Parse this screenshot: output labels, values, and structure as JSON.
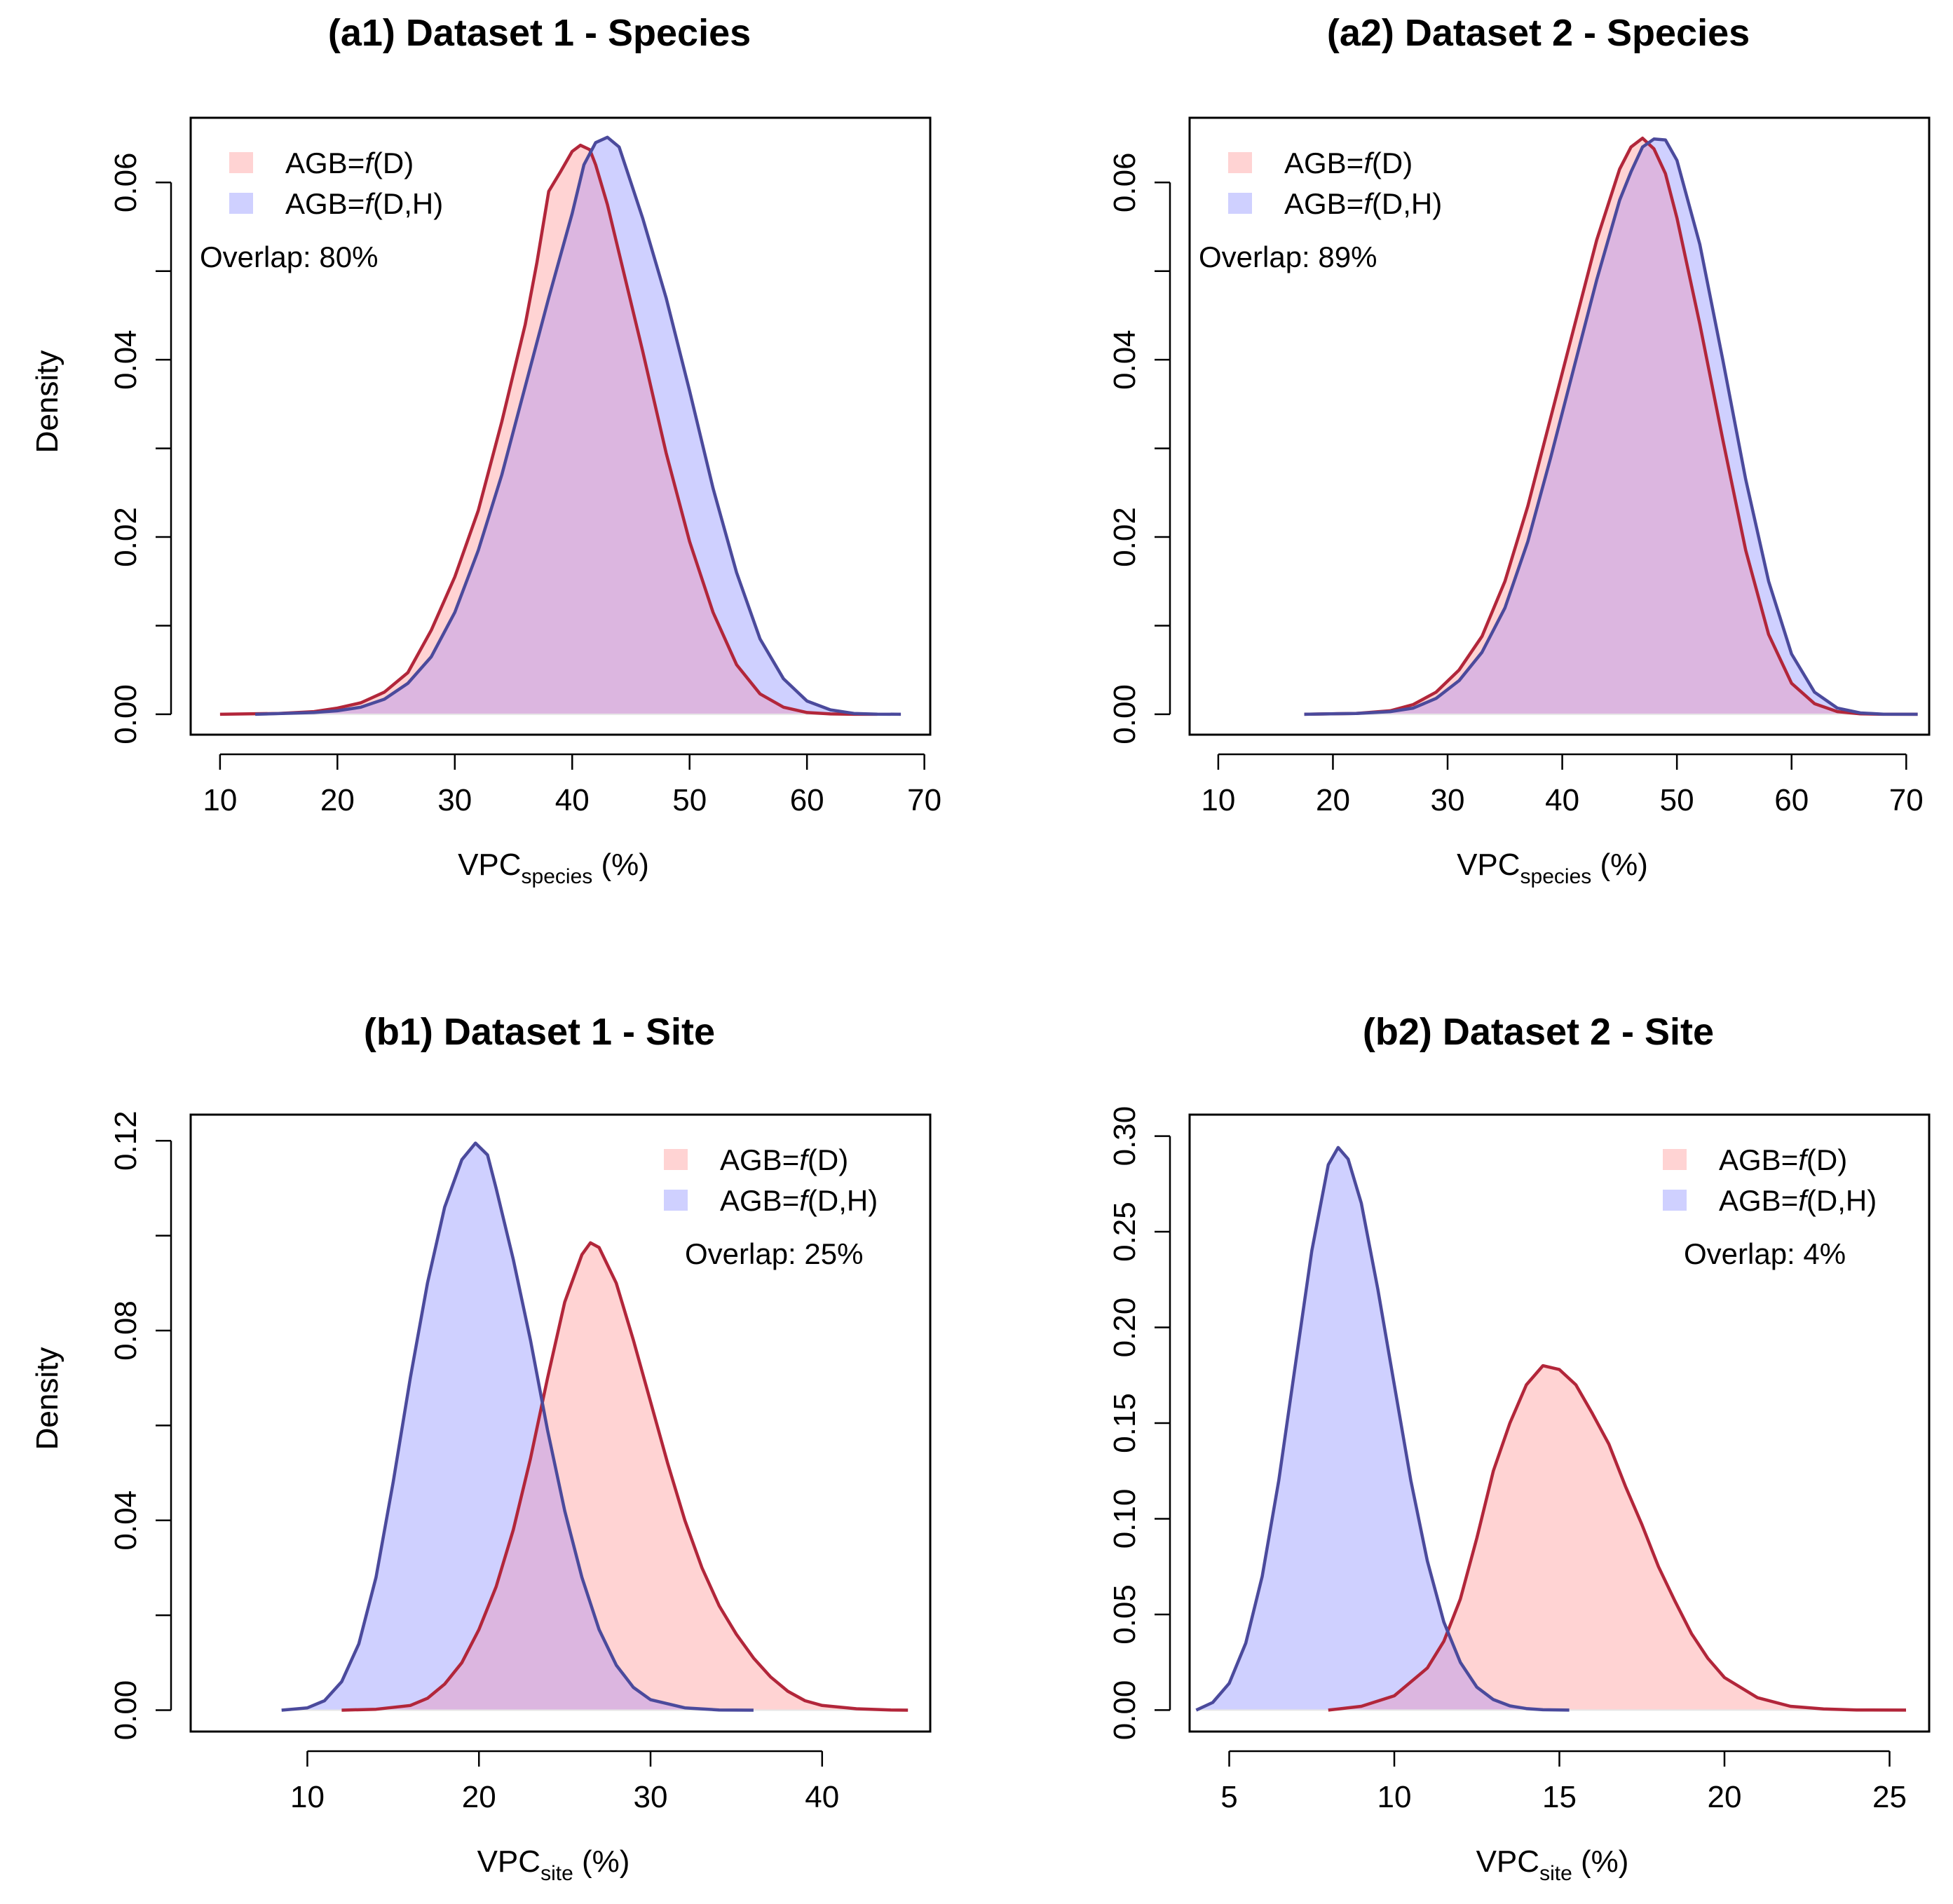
{
  "colors": {
    "d_fill": "#ffd3d3",
    "d_line": "#b2263a",
    "dh_fill": "#cfd0ff",
    "dh_line": "#4b4a9c",
    "overlap_fill": "#dcb6e0"
  },
  "legend": {
    "d": {
      "prefix": "AGB=",
      "func": "f",
      "suffix": "(D)"
    },
    "dh": {
      "prefix": "AGB=",
      "func": "f",
      "suffix": "(D,H)"
    }
  },
  "chart_data": [
    {
      "id": "a1",
      "type": "area",
      "title": "(a1) Dataset 1 - Species",
      "ylabel": "Density",
      "xlabel_main": "VPC",
      "xlabel_sub": "species",
      "xlabel_unit": " (%)",
      "xlim": [
        7.5,
        70.5
      ],
      "ylim": [
        -0.0023,
        0.0673
      ],
      "xticks": [
        10,
        20,
        30,
        40,
        50,
        60,
        70
      ],
      "yticks": [
        0.0,
        0.02,
        0.04,
        0.06
      ],
      "ytick_labels": [
        "0.00",
        "0.02",
        "0.04",
        "0.06"
      ],
      "ytick_minor": [
        0.01,
        0.03,
        0.05
      ],
      "legend_position": "top-left",
      "overlap_label": "Overlap: 80%",
      "series": [
        {
          "name": "AGB=f(D)",
          "key": "d",
          "x": [
            10,
            15,
            18,
            20,
            22,
            24,
            26,
            28,
            30,
            32,
            34,
            36,
            37,
            38,
            39,
            40,
            40.7,
            41.5,
            42,
            43,
            44,
            46,
            48,
            50,
            52,
            54,
            56,
            58,
            60,
            62,
            64,
            66
          ],
          "y": [
            0,
            0.0001,
            0.0003,
            0.0007,
            0.0013,
            0.0025,
            0.0047,
            0.0095,
            0.0155,
            0.023,
            0.033,
            0.044,
            0.051,
            0.059,
            0.0612,
            0.0635,
            0.0642,
            0.0637,
            0.062,
            0.0575,
            0.052,
            0.041,
            0.0295,
            0.0195,
            0.0115,
            0.0056,
            0.0023,
            0.0008,
            0.0002,
            4e-05,
            0,
            0
          ]
        },
        {
          "name": "AGB=f(D,H)",
          "key": "dh",
          "x": [
            13,
            18,
            20,
            22,
            24,
            26,
            28,
            30,
            32,
            34,
            36,
            38,
            40,
            41,
            42,
            43,
            44,
            45,
            46,
            48,
            50,
            52,
            54,
            56,
            58,
            60,
            62,
            64,
            66,
            68
          ],
          "y": [
            0,
            0.0002,
            0.0004,
            0.0008,
            0.0017,
            0.0035,
            0.0065,
            0.0115,
            0.0185,
            0.027,
            0.037,
            0.047,
            0.0565,
            0.062,
            0.0645,
            0.0651,
            0.064,
            0.06,
            0.056,
            0.047,
            0.0365,
            0.0255,
            0.016,
            0.0085,
            0.004,
            0.0015,
            0.0005,
            0.0001,
            2e-05,
            0
          ]
        }
      ]
    },
    {
      "id": "a2",
      "type": "area",
      "title": "(a2) Dataset 2 - Species",
      "ylabel": "Density",
      "xlabel_main": "VPC",
      "xlabel_sub": "species",
      "xlabel_unit": " (%)",
      "xlim": [
        7.5,
        72.0
      ],
      "ylim": [
        -0.0023,
        0.0673
      ],
      "xticks": [
        10,
        20,
        30,
        40,
        50,
        60,
        70
      ],
      "yticks": [
        0.0,
        0.02,
        0.04,
        0.06
      ],
      "ytick_labels": [
        "0.00",
        "0.02",
        "0.04",
        "0.06"
      ],
      "ytick_minor": [
        0.01,
        0.03,
        0.05
      ],
      "legend_position": "top-left",
      "overlap_label": "Overlap: 89%",
      "series": [
        {
          "name": "AGB=f(D)",
          "key": "d",
          "x": [
            17.5,
            22,
            25,
            27,
            29,
            31,
            33,
            35,
            37,
            39,
            41,
            43,
            45,
            46,
            47,
            48,
            49,
            50,
            52,
            54,
            56,
            58,
            60,
            62,
            64,
            66,
            68,
            71
          ],
          "y": [
            0,
            0.0001,
            0.0004,
            0.0011,
            0.0025,
            0.005,
            0.0088,
            0.015,
            0.0235,
            0.0335,
            0.0435,
            0.0535,
            0.0615,
            0.064,
            0.065,
            0.0638,
            0.061,
            0.056,
            0.044,
            0.031,
            0.0185,
            0.009,
            0.0035,
            0.0012,
            0.0003,
            6e-05,
            0,
            0
          ]
        },
        {
          "name": "AGB=f(D,H)",
          "key": "dh",
          "x": [
            17.5,
            22,
            25,
            27,
            29,
            31,
            33,
            35,
            37,
            39,
            41,
            43,
            45,
            46,
            47,
            48,
            49,
            50,
            52,
            54,
            56,
            58,
            60,
            62,
            64,
            66,
            68,
            71
          ],
          "y": [
            0,
            0.0001,
            0.0003,
            0.0007,
            0.0018,
            0.0038,
            0.007,
            0.012,
            0.0195,
            0.029,
            0.039,
            0.049,
            0.058,
            0.0612,
            0.064,
            0.0649,
            0.0648,
            0.0625,
            0.053,
            0.04,
            0.0265,
            0.015,
            0.0068,
            0.0025,
            0.0007,
            0.00015,
            2e-05,
            0
          ]
        }
      ]
    },
    {
      "id": "b1",
      "type": "area",
      "title": "(b1) Dataset 1 - Site",
      "ylabel": "Density",
      "xlabel_main": "VPC",
      "xlabel_sub": "site",
      "xlabel_unit": " (%)",
      "xlim": [
        3.2,
        46.3
      ],
      "ylim": [
        -0.0045,
        0.1255
      ],
      "xticks": [
        10,
        20,
        30,
        40
      ],
      "yticks": [
        0.0,
        0.04,
        0.08,
        0.12
      ],
      "ytick_labels": [
        "0.00",
        "0.04",
        "0.08",
        "0.12"
      ],
      "ytick_minor": [
        0.02,
        0.06,
        0.1
      ],
      "legend_position": "top-right",
      "overlap_label": "Overlap: 25%",
      "series": [
        {
          "name": "AGB=f(D)",
          "key": "d",
          "x": [
            12,
            14,
            16,
            17,
            18,
            19,
            20,
            21,
            22,
            23,
            24,
            25,
            26,
            26.5,
            27,
            28,
            29,
            30,
            31,
            32,
            33,
            34,
            35,
            36,
            37,
            38,
            39,
            40,
            42,
            44,
            45
          ],
          "y": [
            0,
            0.0002,
            0.001,
            0.0025,
            0.0055,
            0.01,
            0.017,
            0.026,
            0.038,
            0.053,
            0.07,
            0.086,
            0.096,
            0.0985,
            0.0975,
            0.09,
            0.078,
            0.065,
            0.052,
            0.04,
            0.03,
            0.022,
            0.016,
            0.011,
            0.007,
            0.004,
            0.002,
            0.001,
            0.0003,
            5e-05,
            0
          ]
        },
        {
          "name": "AGB=f(D,H)",
          "key": "dh",
          "x": [
            8.5,
            10,
            11,
            12,
            13,
            14,
            15,
            16,
            17,
            18,
            19,
            19.8,
            20.5,
            21,
            22,
            23,
            24,
            25,
            26,
            27,
            28,
            29,
            30,
            32,
            34,
            36
          ],
          "y": [
            0,
            0.0005,
            0.002,
            0.006,
            0.014,
            0.028,
            0.048,
            0.07,
            0.09,
            0.106,
            0.116,
            0.1195,
            0.117,
            0.11,
            0.095,
            0.078,
            0.059,
            0.042,
            0.028,
            0.017,
            0.0095,
            0.0048,
            0.0022,
            0.0005,
            5e-05,
            0
          ]
        }
      ]
    },
    {
      "id": "b2",
      "type": "area",
      "title": "(b2) Dataset 2 - Site",
      "ylabel": "Density",
      "xlabel_main": "VPC",
      "xlabel_sub": "site",
      "xlabel_unit": " (%)",
      "xlim": [
        3.8,
        26.2
      ],
      "ylim": [
        -0.0112,
        0.3112
      ],
      "xticks": [
        5,
        10,
        15,
        20,
        25
      ],
      "yticks": [
        0.0,
        0.05,
        0.1,
        0.15,
        0.2,
        0.25,
        0.3
      ],
      "ytick_labels": [
        "0.00",
        "0.05",
        "0.10",
        "0.15",
        "0.20",
        "0.25",
        "0.30"
      ],
      "ytick_minor": [],
      "legend_position": "top-right",
      "overlap_label": "Overlap: 4%",
      "series": [
        {
          "name": "AGB=f(D)",
          "key": "d",
          "x": [
            8,
            9,
            10,
            11,
            11.5,
            12,
            12.5,
            13,
            13.5,
            14,
            14.5,
            15,
            15.5,
            16,
            16.5,
            17,
            17.5,
            18,
            18.5,
            19,
            19.5,
            20,
            21,
            22,
            23,
            24,
            25.5
          ],
          "y": [
            0,
            0.002,
            0.0075,
            0.022,
            0.036,
            0.058,
            0.09,
            0.125,
            0.15,
            0.17,
            0.18,
            0.178,
            0.17,
            0.155,
            0.139,
            0.117,
            0.097,
            0.075,
            0.057,
            0.04,
            0.027,
            0.017,
            0.0065,
            0.002,
            0.0006,
            0.0001,
            0
          ]
        },
        {
          "name": "AGB=f(D,H)",
          "key": "dh",
          "x": [
            4,
            4.5,
            5,
            5.5,
            6,
            6.5,
            7,
            7.5,
            8,
            8.3,
            8.6,
            9,
            9.5,
            10,
            10.5,
            11,
            11.5,
            12,
            12.5,
            13,
            13.5,
            14,
            14.5,
            15.3
          ],
          "y": [
            0,
            0.004,
            0.014,
            0.035,
            0.07,
            0.12,
            0.18,
            0.24,
            0.285,
            0.294,
            0.288,
            0.265,
            0.22,
            0.17,
            0.12,
            0.078,
            0.046,
            0.025,
            0.012,
            0.0055,
            0.0022,
            0.0008,
            0.0002,
            0
          ]
        }
      ]
    }
  ]
}
